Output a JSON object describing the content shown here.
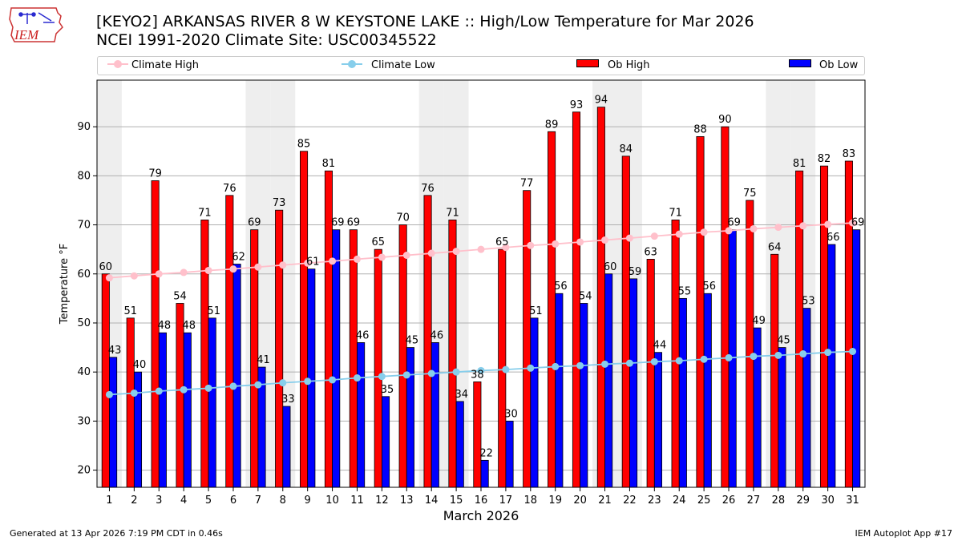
{
  "logo": {
    "text": "IEM",
    "icon": "iowa-state-outline-weather-station"
  },
  "title": {
    "line1": "[KEYO2] ARKANSAS RIVER 8 W KEYSTONE LAKE :: High/Low Temperature for Mar 2026",
    "line2": "NCEI 1991-2020 Climate Site: USC00345522"
  },
  "legend": {
    "climate_high": "Climate High",
    "climate_low": "Climate Low",
    "ob_high": "Ob High",
    "ob_low": "Ob Low"
  },
  "colors": {
    "ob_high": "#ff0000",
    "ob_low": "#0000ff",
    "climate_high": "#ffc0cb",
    "climate_low": "#87ceeb",
    "weekend_shade": "#eeeeee",
    "grid": "#b0b0b0"
  },
  "footer": {
    "generated": "Generated at 13 Apr 2026 7:19 PM CDT in 0.46s",
    "app": "IEM Autoplot App #17"
  },
  "chart_data": {
    "type": "bar",
    "xlabel": "March 2026",
    "ylabel": "Temperature °F",
    "ylim": [
      16.5,
      99.5
    ],
    "yticks": [
      20,
      30,
      40,
      50,
      60,
      70,
      80,
      90
    ],
    "grid": true,
    "legend_position": "top",
    "categories": [
      "1",
      "2",
      "3",
      "4",
      "5",
      "6",
      "7",
      "8",
      "9",
      "10",
      "11",
      "12",
      "13",
      "14",
      "15",
      "16",
      "17",
      "18",
      "19",
      "20",
      "21",
      "22",
      "23",
      "24",
      "25",
      "26",
      "27",
      "28",
      "29",
      "30",
      "31"
    ],
    "shaded_days": [
      1,
      7,
      8,
      14,
      15,
      21,
      22,
      28,
      29
    ],
    "series": [
      {
        "name": "Ob High",
        "kind": "bar",
        "values": [
          60,
          51,
          79,
          54,
          71,
          76,
          69,
          73,
          85,
          81,
          69,
          65,
          70,
          76,
          71,
          38,
          65,
          77,
          89,
          93,
          94,
          84,
          63,
          71,
          88,
          90,
          75,
          64,
          81,
          82,
          83
        ]
      },
      {
        "name": "Ob Low",
        "kind": "bar",
        "values": [
          43,
          40,
          48,
          48,
          51,
          62,
          41,
          33,
          61,
          69,
          46,
          35,
          45,
          46,
          34,
          22,
          30,
          51,
          56,
          54,
          60,
          59,
          44,
          55,
          56,
          69,
          49,
          45,
          53,
          66,
          69
        ]
      },
      {
        "name": "Climate High",
        "kind": "line",
        "values": [
          59.2,
          59.6,
          60.0,
          60.3,
          60.7,
          61.0,
          61.4,
          61.8,
          62.2,
          62.6,
          63.0,
          63.4,
          63.8,
          64.2,
          64.6,
          65.0,
          65.4,
          65.8,
          66.1,
          66.5,
          66.9,
          67.3,
          67.7,
          68.1,
          68.5,
          68.8,
          69.2,
          69.5,
          69.8,
          70.1,
          70.4
        ]
      },
      {
        "name": "Climate Low",
        "kind": "line",
        "values": [
          35.4,
          35.7,
          36.1,
          36.4,
          36.7,
          37.1,
          37.4,
          37.8,
          38.1,
          38.4,
          38.8,
          39.1,
          39.4,
          39.7,
          40.0,
          40.3,
          40.5,
          40.8,
          41.1,
          41.3,
          41.6,
          41.8,
          42.1,
          42.3,
          42.6,
          42.9,
          43.2,
          43.4,
          43.7,
          44.0,
          44.2
        ]
      }
    ]
  }
}
